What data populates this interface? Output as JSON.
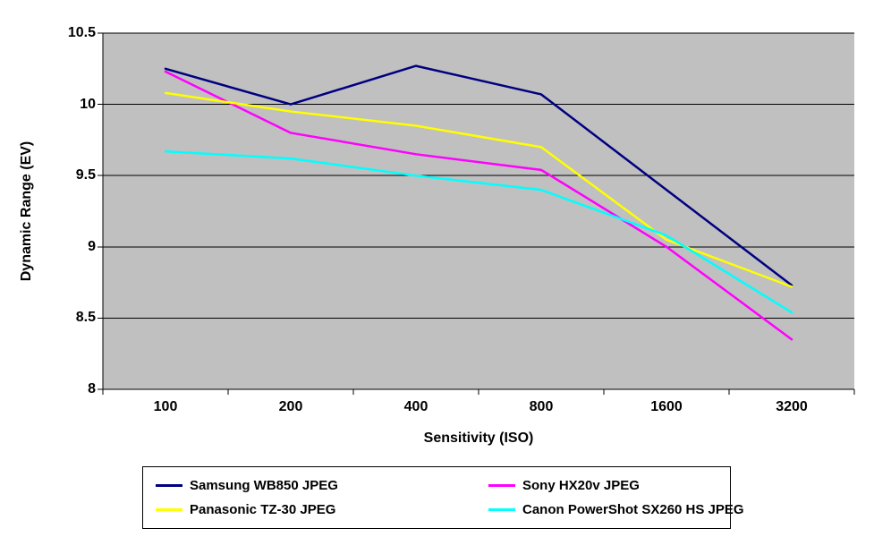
{
  "chart_data": {
    "type": "line",
    "title": "",
    "xlabel": "Sensitivity (ISO)",
    "ylabel": "Dynamic Range (EV)",
    "categories": [
      "100",
      "200",
      "400",
      "800",
      "1600",
      "3200"
    ],
    "ylim": [
      8,
      10.5
    ],
    "y_ticks": [
      {
        "value": 10.5,
        "label": "10.5"
      },
      {
        "value": 10,
        "label": "10"
      },
      {
        "value": 9.5,
        "label": "9.5"
      },
      {
        "value": 9,
        "label": "9"
      },
      {
        "value": 8.5,
        "label": "8.5"
      },
      {
        "value": 8,
        "label": "8"
      }
    ],
    "grid": true,
    "legend_position": "bottom",
    "plot_bg": "#C0C0C0",
    "gridline_color": "#000000",
    "axis_color": "#000000",
    "series": [
      {
        "name": "Samsung WB850 JPEG",
        "color": "#000080",
        "values": [
          10.25,
          10.0,
          10.27,
          10.07,
          9.4,
          8.73
        ]
      },
      {
        "name": "Sony HX20v JPEG",
        "color": "#FF00FF",
        "values": [
          10.23,
          9.8,
          9.65,
          9.54,
          9.0,
          8.35
        ]
      },
      {
        "name": "Panasonic TZ-30 JPEG",
        "color": "#FFFF00",
        "values": [
          10.08,
          9.95,
          9.85,
          9.7,
          9.05,
          8.72
        ]
      },
      {
        "name": "Canon PowerShot SX260 HS JPEG",
        "color": "#00FFFF",
        "values": [
          9.67,
          9.62,
          9.5,
          9.4,
          9.08,
          8.54
        ]
      }
    ]
  }
}
